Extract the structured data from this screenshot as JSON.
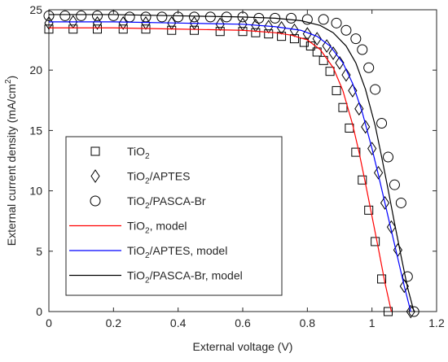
{
  "chart_data": {
    "type": "scatter",
    "title": "",
    "xlabel": "External voltage (V)",
    "ylabel": "External current density (mA/cm²)",
    "xlim": [
      0,
      1.2
    ],
    "ylim": [
      0,
      25
    ],
    "xticks": [
      "0",
      "0.2",
      "0.4",
      "0.6",
      "0.8",
      "1",
      "1.2"
    ],
    "yticks": [
      "0",
      "5",
      "10",
      "15",
      "20",
      "25"
    ],
    "grid": false,
    "legend_position": "bottom-left",
    "series": [
      {
        "name": "TiO2",
        "legend_label": {
          "base": "TiO",
          "sub": "2",
          "rest": ""
        },
        "kind": "markers",
        "marker": "square",
        "color": "#000000",
        "x": [
          0.0,
          0.075,
          0.15,
          0.23,
          0.3,
          0.38,
          0.45,
          0.53,
          0.6,
          0.64,
          0.68,
          0.72,
          0.76,
          0.79,
          0.81,
          0.83,
          0.85,
          0.87,
          0.89,
          0.91,
          0.93,
          0.95,
          0.97,
          0.99,
          1.01,
          1.03,
          1.05
        ],
        "y": [
          23.4,
          23.4,
          23.4,
          23.4,
          23.4,
          23.3,
          23.3,
          23.2,
          23.2,
          23.1,
          23.0,
          22.8,
          22.6,
          22.3,
          22.0,
          21.5,
          20.8,
          19.9,
          18.3,
          16.9,
          15.2,
          13.2,
          10.9,
          8.4,
          5.8,
          2.7,
          0.0
        ]
      },
      {
        "name": "TiO2/APTES",
        "legend_label": {
          "base": "TiO",
          "sub": "2",
          "rest": "/APTES"
        },
        "kind": "markers",
        "marker": "diamond",
        "color": "#000000",
        "x": [
          0.0,
          0.075,
          0.15,
          0.23,
          0.3,
          0.38,
          0.45,
          0.53,
          0.6,
          0.64,
          0.68,
          0.72,
          0.76,
          0.8,
          0.83,
          0.86,
          0.88,
          0.9,
          0.92,
          0.94,
          0.96,
          0.98,
          1.0,
          1.02,
          1.04,
          1.06,
          1.08,
          1.1,
          1.12
        ],
        "y": [
          23.9,
          24.0,
          23.9,
          23.9,
          23.9,
          23.9,
          23.9,
          23.8,
          23.8,
          23.7,
          23.6,
          23.5,
          23.3,
          23.0,
          22.6,
          22.0,
          21.4,
          20.6,
          19.6,
          18.3,
          16.8,
          15.3,
          13.5,
          11.5,
          9.0,
          7.0,
          5.1,
          2.1,
          0.0
        ]
      },
      {
        "name": "TiO2/PASCA-Br",
        "legend_label": {
          "base": "TiO",
          "sub": "2",
          "rest": "/PASCA-Br"
        },
        "kind": "markers",
        "marker": "circle",
        "color": "#000000",
        "x": [
          0.0,
          0.05,
          0.1,
          0.15,
          0.2,
          0.25,
          0.3,
          0.35,
          0.4,
          0.45,
          0.5,
          0.55,
          0.6,
          0.65,
          0.7,
          0.75,
          0.8,
          0.85,
          0.89,
          0.92,
          0.95,
          0.97,
          0.99,
          1.01,
          1.03,
          1.05,
          1.07,
          1.09,
          1.11,
          1.13
        ],
        "y": [
          24.5,
          24.5,
          24.5,
          24.5,
          24.5,
          24.4,
          24.4,
          24.4,
          24.4,
          24.4,
          24.4,
          24.4,
          24.4,
          24.3,
          24.3,
          24.3,
          24.2,
          24.2,
          23.9,
          23.3,
          22.6,
          21.7,
          20.2,
          18.4,
          15.6,
          12.8,
          10.5,
          9.0,
          2.9,
          0.0
        ]
      },
      {
        "name": "TiO2, model",
        "legend_label": {
          "base": "TiO",
          "sub": "2",
          "rest": ", model"
        },
        "kind": "line",
        "color": "#ff0000",
        "x": [
          0.0,
          0.2,
          0.4,
          0.6,
          0.7,
          0.75,
          0.8,
          0.84,
          0.88,
          0.91,
          0.94,
          0.96,
          0.98,
          1.0,
          1.02,
          1.04,
          1.06
        ],
        "y": [
          23.5,
          23.5,
          23.4,
          23.3,
          23.1,
          22.9,
          22.5,
          21.7,
          20.2,
          18.3,
          15.5,
          13.2,
          10.6,
          7.9,
          5.2,
          2.4,
          0.0
        ]
      },
      {
        "name": "TiO2/APTES, model",
        "legend_label": {
          "base": "TiO",
          "sub": "2",
          "rest": "/APTES, model"
        },
        "kind": "line",
        "color": "#0000ff",
        "x": [
          0.0,
          0.2,
          0.4,
          0.6,
          0.7,
          0.78,
          0.83,
          0.87,
          0.91,
          0.94,
          0.97,
          1.0,
          1.02,
          1.04,
          1.06,
          1.08,
          1.1,
          1.12
        ],
        "y": [
          24.0,
          24.0,
          23.9,
          23.8,
          23.6,
          23.3,
          22.8,
          22.0,
          20.6,
          18.9,
          16.5,
          13.5,
          11.3,
          9.0,
          6.7,
          4.4,
          2.1,
          0.0
        ]
      },
      {
        "name": "TiO2/PASCA-Br, model",
        "legend_label": {
          "base": "TiO",
          "sub": "2",
          "rest": "/PASCA-Br, model"
        },
        "kind": "line",
        "color": "#000000",
        "x": [
          0.0,
          0.2,
          0.4,
          0.6,
          0.7,
          0.78,
          0.84,
          0.88,
          0.92,
          0.95,
          0.98,
          1.01,
          1.03,
          1.05,
          1.07,
          1.09,
          1.11,
          1.13
        ],
        "y": [
          24.6,
          24.6,
          24.5,
          24.4,
          24.3,
          24.1,
          23.7,
          23.1,
          22.0,
          20.6,
          18.4,
          15.4,
          12.8,
          10.1,
          7.3,
          4.6,
          2.0,
          0.0
        ]
      }
    ]
  }
}
